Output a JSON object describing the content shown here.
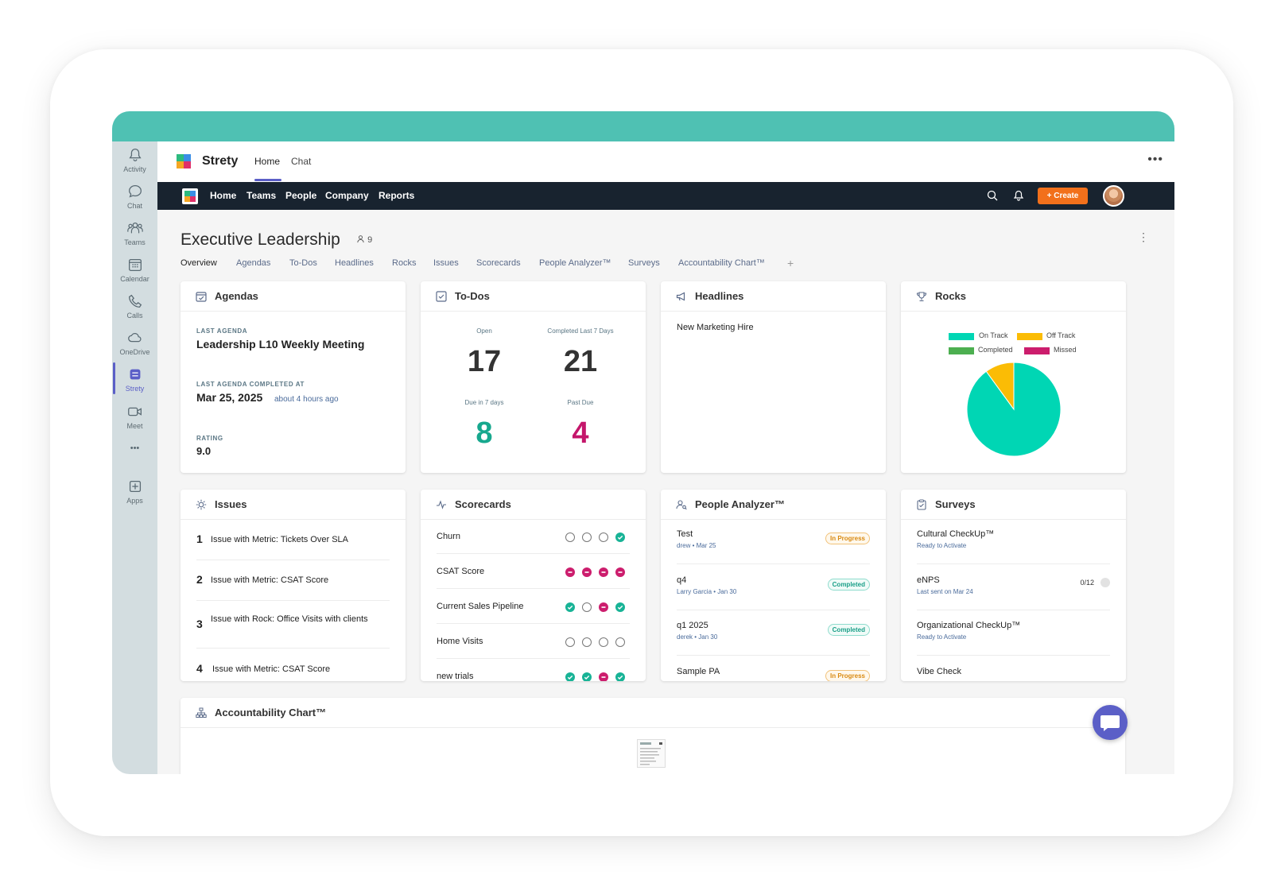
{
  "rail": {
    "items": [
      {
        "label": "Activity",
        "icon": "bell-icon"
      },
      {
        "label": "Chat",
        "icon": "chat-icon"
      },
      {
        "label": "Teams",
        "icon": "teams-icon"
      },
      {
        "label": "Calendar",
        "icon": "calendar-icon"
      },
      {
        "label": "Calls",
        "icon": "phone-icon"
      },
      {
        "label": "OneDrive",
        "icon": "cloud-icon"
      },
      {
        "label": "Strety",
        "icon": "strety-icon"
      },
      {
        "label": "Meet",
        "icon": "video-icon"
      },
      {
        "label": "Apps",
        "icon": "plus-box-icon"
      }
    ],
    "more": "•••"
  },
  "app_header": {
    "app_name": "Strety",
    "tabs": [
      "Home",
      "Chat"
    ],
    "more": "•••"
  },
  "navbar": {
    "links": [
      "Home",
      "Teams",
      "People",
      "Company",
      "Reports"
    ],
    "create_label": "+ Create",
    "accent": "#f2701b"
  },
  "page": {
    "title": "Executive Leadership",
    "member_count": "9",
    "tabs": [
      "Overview",
      "Agendas",
      "To-Dos",
      "Headlines",
      "Rocks",
      "Issues",
      "Scorecards",
      "People Analyzer™",
      "Surveys",
      "Accountability Chart™"
    ],
    "add_tab": "+"
  },
  "agendas": {
    "title": "Agendas",
    "last_agenda_label": "LAST AGENDA",
    "last_agenda": "Leadership L10 Weekly Meeting",
    "completed_label": "LAST AGENDA COMPLETED AT",
    "completed_date": "Mar 25, 2025",
    "completed_ago": "about 4 hours ago",
    "rating_label": "RATING",
    "rating": "9.0"
  },
  "todos": {
    "title": "To-Dos",
    "open_label": "Open",
    "open": "17",
    "completed_label": "Completed Last 7 Days",
    "completed": "21",
    "due_label": "Due in 7 days",
    "due": "8",
    "past_due_label": "Past Due",
    "past_due": "4"
  },
  "headlines": {
    "title": "Headlines",
    "items": [
      "New Marketing Hire"
    ]
  },
  "rocks": {
    "title": "Rocks",
    "legend": [
      {
        "name": "On Track",
        "color": "#00d6b4"
      },
      {
        "name": "Off Track",
        "color": "#fbbc05"
      },
      {
        "name": "Completed",
        "color": "#4caf50"
      },
      {
        "name": "Missed",
        "color": "#cc1d6d"
      }
    ]
  },
  "chart_data": {
    "type": "pie",
    "categories": [
      "On Track",
      "Off Track",
      "Completed",
      "Missed"
    ],
    "values": [
      90,
      10,
      0,
      0
    ],
    "colors": [
      "#00d6b4",
      "#fbbc05",
      "#4caf50",
      "#cc1d6d"
    ],
    "legend_position": "top"
  },
  "issues": {
    "title": "Issues",
    "items": [
      {
        "num": "1",
        "text": "Issue with Metric: Tickets Over SLA"
      },
      {
        "num": "2",
        "text": "Issue with Metric: CSAT Score"
      },
      {
        "num": "3",
        "text": "Issue with Rock: Office Visits with clients"
      },
      {
        "num": "4",
        "text": "Issue with Metric: CSAT Score"
      }
    ]
  },
  "scorecards": {
    "title": "Scorecards",
    "rows": [
      {
        "name": "Churn",
        "status": [
          "empty",
          "empty",
          "empty",
          "green"
        ]
      },
      {
        "name": "CSAT Score",
        "status": [
          "red",
          "red",
          "red",
          "red"
        ]
      },
      {
        "name": "Current Sales Pipeline",
        "status": [
          "green",
          "empty",
          "red",
          "green"
        ]
      },
      {
        "name": "Home Visits",
        "status": [
          "empty",
          "empty",
          "empty",
          "empty"
        ]
      },
      {
        "name": "new trials",
        "status": [
          "green",
          "green",
          "red",
          "green"
        ]
      }
    ]
  },
  "people_analyzer": {
    "title": "People Analyzer™",
    "items": [
      {
        "name": "Test",
        "meta": "drew • Mar 25",
        "status": "In Progress",
        "kind": "progress"
      },
      {
        "name": "q4",
        "meta": "Larry Garcia • Jan 30",
        "status": "Completed",
        "kind": "completed"
      },
      {
        "name": "q1 2025",
        "meta": "derek • Jan 30",
        "status": "Completed",
        "kind": "completed"
      },
      {
        "name": "Sample PA",
        "meta": "",
        "status": "In Progress",
        "kind": "progress"
      }
    ]
  },
  "surveys": {
    "title": "Surveys",
    "items": [
      {
        "name": "Cultural CheckUp™",
        "meta": "Ready to Activate",
        "count": ""
      },
      {
        "name": "eNPS",
        "meta": "Last sent on Mar 24",
        "count": "0/12"
      },
      {
        "name": "Organizational CheckUp™",
        "meta": "Ready to Activate",
        "count": ""
      },
      {
        "name": "Vibe Check",
        "meta": "",
        "count": ""
      }
    ]
  },
  "accountability": {
    "title": "Accountability Chart™"
  }
}
